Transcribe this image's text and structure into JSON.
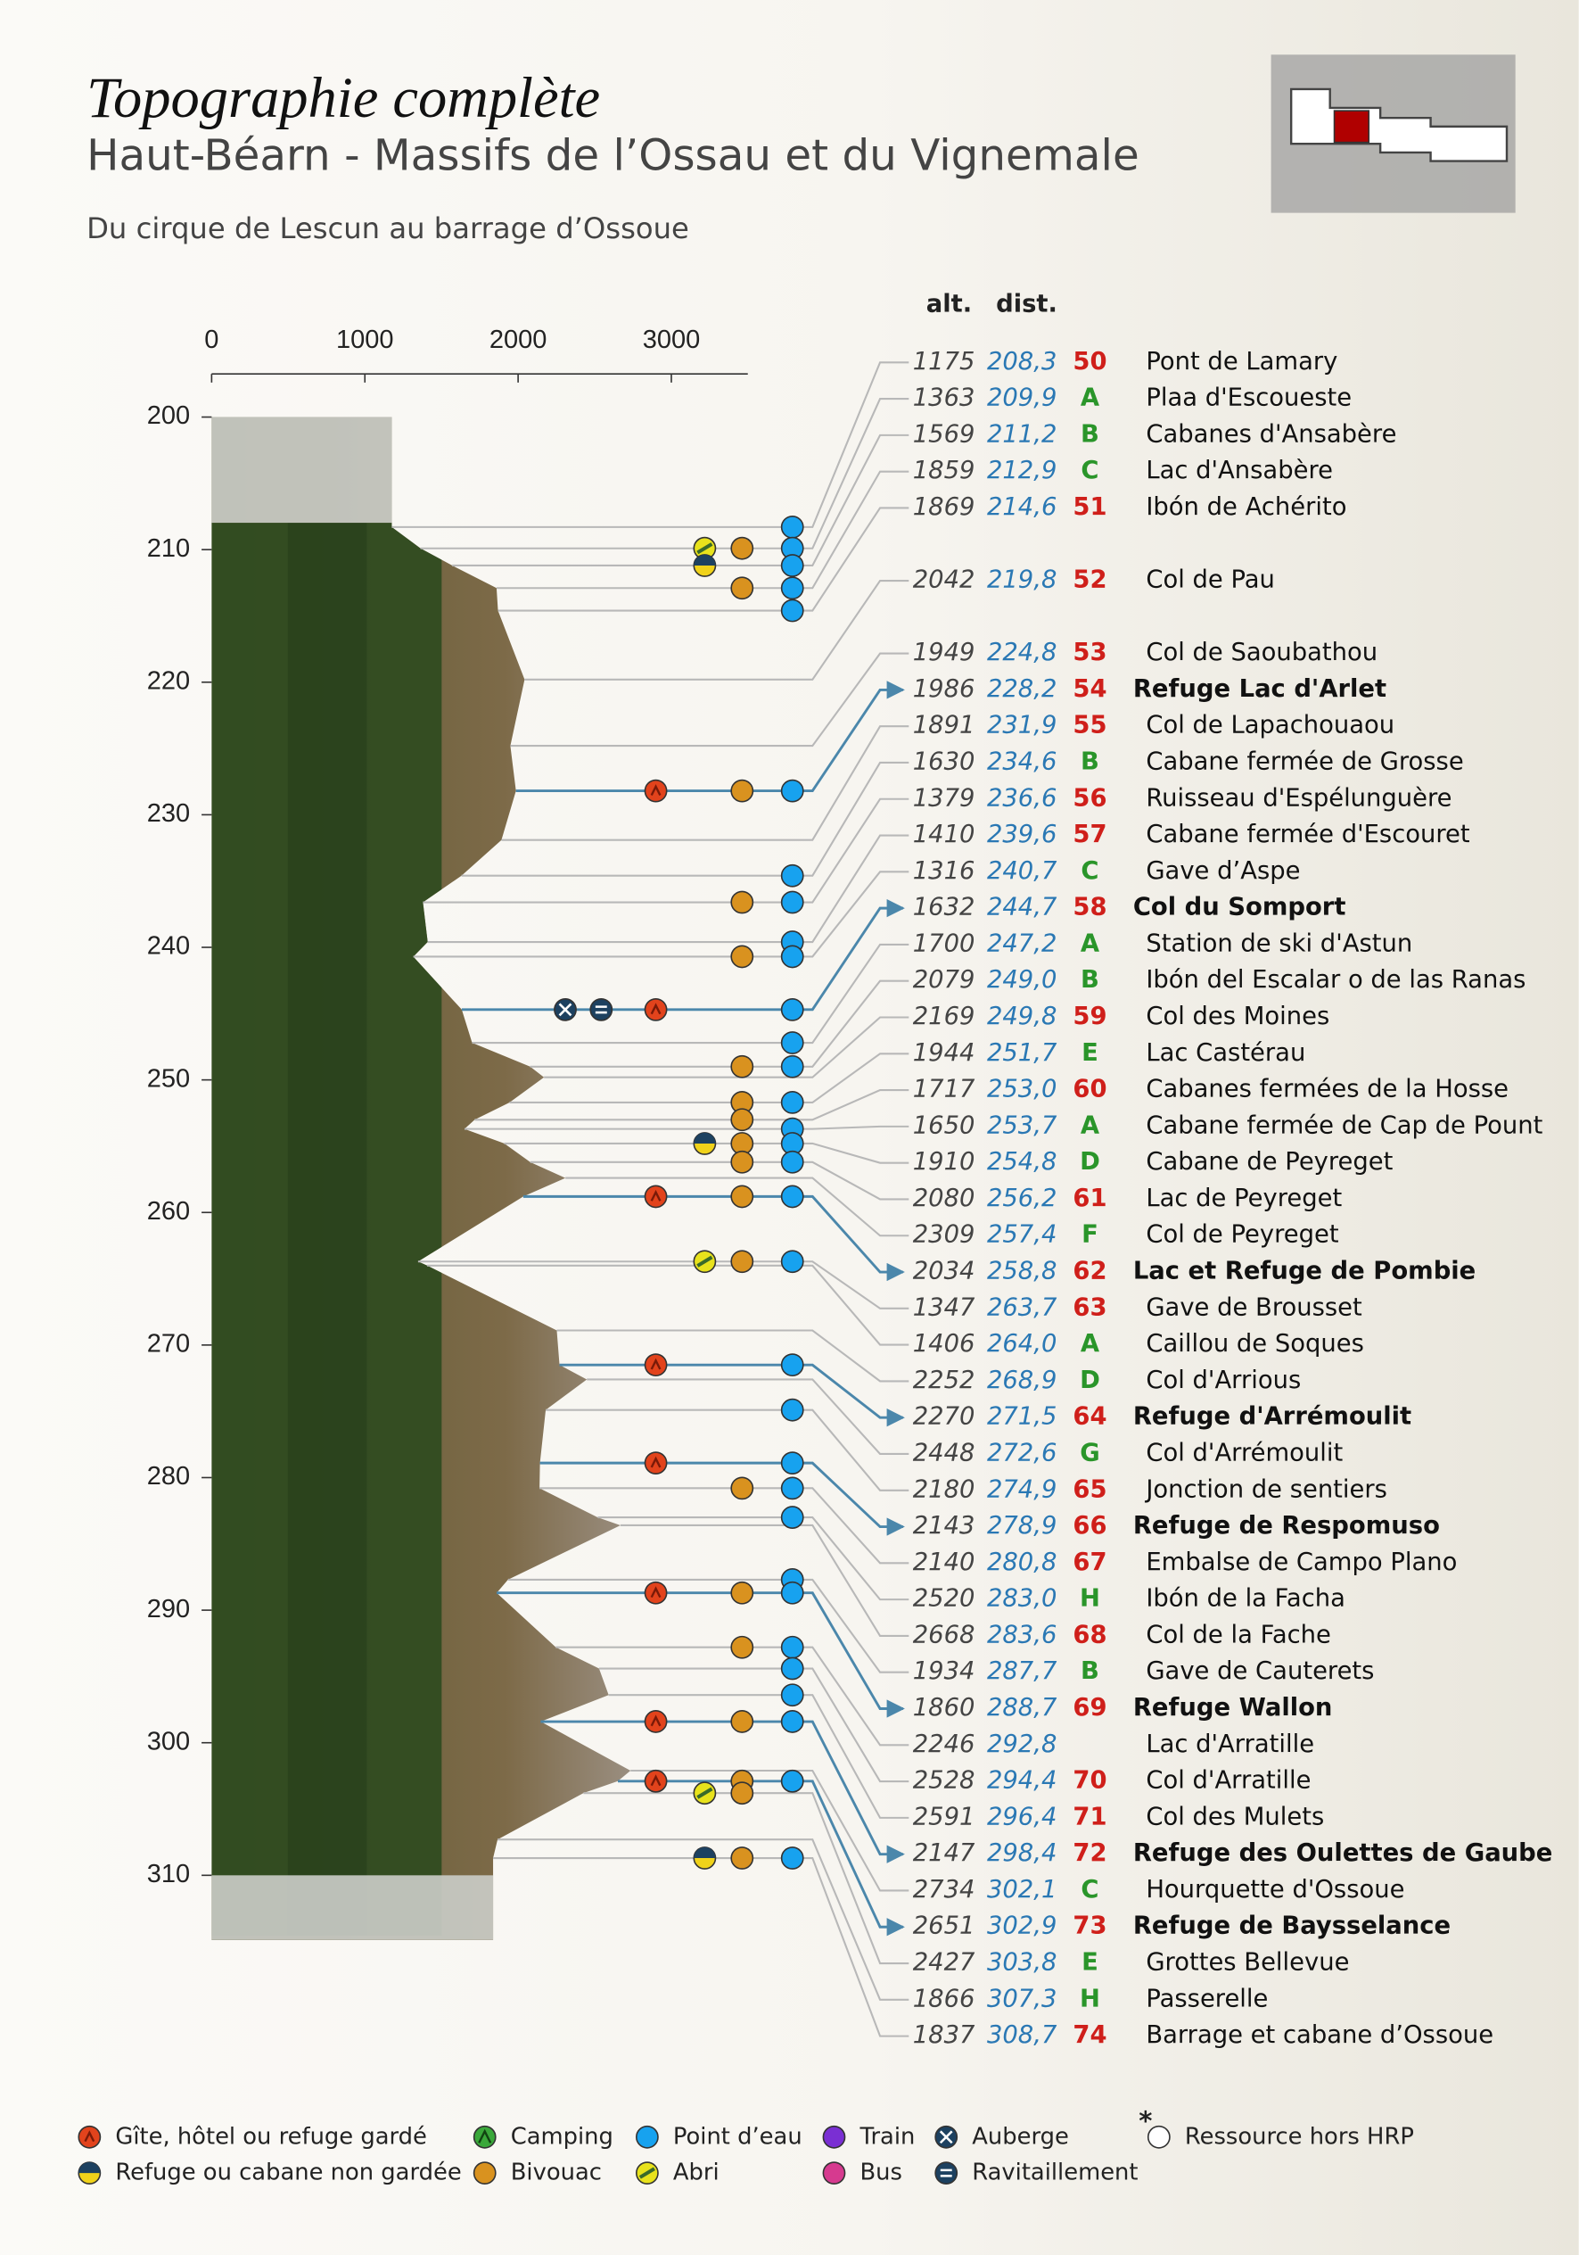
{
  "header": {
    "title": "Topographie complète",
    "subtitle": "Haut-Béarn - Massifs de l’Ossau et du Vignemale",
    "route": "Du cirque de Lescun au barrage d’Ossoue"
  },
  "profile": {
    "elevation_ticks": [
      0,
      1000,
      2000,
      3000
    ],
    "distance_ticks": [
      200,
      210,
      220,
      230,
      240,
      250,
      260,
      270,
      280,
      290,
      300,
      310
    ]
  },
  "table": {
    "headers": {
      "alt": "alt.",
      "dist": "dist."
    },
    "rows": [
      {
        "alt": 1175,
        "dist": {
          "value": 208.3,
          "label": "208,3"
        },
        "ref": "50",
        "name": "Pont de Lamary"
      },
      {
        "alt": 1363,
        "dist": {
          "value": 209.9,
          "label": "209,9"
        },
        "ref": "A",
        "name": "Plaa d'Escoueste"
      },
      {
        "alt": 1569,
        "dist": {
          "value": 211.2,
          "label": "211,2"
        },
        "ref": "B",
        "name": "Cabanes d'Ansabère"
      },
      {
        "alt": 1859,
        "dist": {
          "value": 212.9,
          "label": "212,9"
        },
        "ref": "C",
        "name": "Lac d'Ansabère"
      },
      {
        "alt": 1869,
        "dist": {
          "value": 214.6,
          "label": "214,6"
        },
        "ref": "51",
        "name": "Ibón de Achérito"
      },
      {
        "alt": 2042,
        "dist": {
          "value": 219.8,
          "label": "219,8"
        },
        "ref": "52",
        "name": "Col de Pau"
      },
      {
        "alt": 1949,
        "dist": {
          "value": 224.8,
          "label": "224,8"
        },
        "ref": "53",
        "name": "Col de Saoubathou"
      },
      {
        "alt": 1986,
        "dist": {
          "value": 228.2,
          "label": "228,2"
        },
        "ref": "54",
        "name": "Refuge Lac d'Arlet"
      },
      {
        "alt": 1891,
        "dist": {
          "value": 231.9,
          "label": "231,9"
        },
        "ref": "55",
        "name": "Col de Lapachouaou"
      },
      {
        "alt": 1630,
        "dist": {
          "value": 234.6,
          "label": "234,6"
        },
        "ref": "B",
        "name": "Cabane fermée de Grosse"
      },
      {
        "alt": 1379,
        "dist": {
          "value": 236.6,
          "label": "236,6"
        },
        "ref": "56",
        "name": "Ruisseau d'Espélunguère"
      },
      {
        "alt": 1410,
        "dist": {
          "value": 239.6,
          "label": "239,6"
        },
        "ref": "57",
        "name": "Cabane fermée d'Escouret"
      },
      {
        "alt": 1316,
        "dist": {
          "value": 240.7,
          "label": "240,7"
        },
        "ref": "C",
        "name": "Gave d’Aspe"
      },
      {
        "alt": 1632,
        "dist": {
          "value": 244.7,
          "label": "244,7"
        },
        "ref": "58",
        "name": "Col du Somport"
      },
      {
        "alt": 1700,
        "dist": {
          "value": 247.2,
          "label": "247,2"
        },
        "ref": "A",
        "name": "Station de ski d'Astun"
      },
      {
        "alt": 2079,
        "dist": {
          "value": 249.0,
          "label": "249,0"
        },
        "ref": "B",
        "name": "Ibón del Escalar o de las Ranas"
      },
      {
        "alt": 2169,
        "dist": {
          "value": 249.8,
          "label": "249,8"
        },
        "ref": "59",
        "name": "Col des Moines"
      },
      {
        "alt": 1944,
        "dist": {
          "value": 251.7,
          "label": "251,7"
        },
        "ref": "E",
        "name": "Lac Castérau"
      },
      {
        "alt": 1717,
        "dist": {
          "value": 253.0,
          "label": "253,0"
        },
        "ref": "60",
        "name": "Cabanes fermées de la Hosse"
      },
      {
        "alt": 1650,
        "dist": {
          "value": 253.7,
          "label": "253,7"
        },
        "ref": "A",
        "name": "Cabane fermée de Cap de Pount"
      },
      {
        "alt": 1910,
        "dist": {
          "value": 254.8,
          "label": "254,8"
        },
        "ref": "D",
        "name": "Cabane de Peyreget"
      },
      {
        "alt": 2080,
        "dist": {
          "value": 256.2,
          "label": "256,2"
        },
        "ref": "61",
        "name": "Lac de Peyreget"
      },
      {
        "alt": 2309,
        "dist": {
          "value": 257.4,
          "label": "257,4"
        },
        "ref": "F",
        "name": "Col de Peyreget"
      },
      {
        "alt": 2034,
        "dist": {
          "value": 258.8,
          "label": "258,8"
        },
        "ref": "62",
        "name": "Lac et Refuge de Pombie"
      },
      {
        "alt": 1347,
        "dist": {
          "value": 263.7,
          "label": "263,7"
        },
        "ref": "63",
        "name": "Gave de Brousset"
      },
      {
        "alt": 1406,
        "dist": {
          "value": 264.0,
          "label": "264,0"
        },
        "ref": "A",
        "name": "Caillou de Soques"
      },
      {
        "alt": 2252,
        "dist": {
          "value": 268.9,
          "label": "268,9"
        },
        "ref": "D",
        "name": "Col d'Arrious"
      },
      {
        "alt": 2270,
        "dist": {
          "value": 271.5,
          "label": "271,5"
        },
        "ref": "64",
        "name": "Refuge d'Arrémoulit"
      },
      {
        "alt": 2448,
        "dist": {
          "value": 272.6,
          "label": "272,6"
        },
        "ref": "G",
        "name": "Col d'Arrémoulit"
      },
      {
        "alt": 2180,
        "dist": {
          "value": 274.9,
          "label": "274,9"
        },
        "ref": "65",
        "name": "Jonction de sentiers"
      },
      {
        "alt": 2143,
        "dist": {
          "value": 278.9,
          "label": "278,9"
        },
        "ref": "66",
        "name": "Refuge de Respomuso"
      },
      {
        "alt": 2140,
        "dist": {
          "value": 280.8,
          "label": "280,8"
        },
        "ref": "67",
        "name": "Embalse de Campo Plano"
      },
      {
        "alt": 2520,
        "dist": {
          "value": 283.0,
          "label": "283,0"
        },
        "ref": "H",
        "name": "Ibón de la Facha"
      },
      {
        "alt": 2668,
        "dist": {
          "value": 283.6,
          "label": "283,6"
        },
        "ref": "68",
        "name": "Col de la Fache"
      },
      {
        "alt": 1934,
        "dist": {
          "value": 287.7,
          "label": "287,7"
        },
        "ref": "B",
        "name": "Gave de Cauterets"
      },
      {
        "alt": 1860,
        "dist": {
          "value": 288.7,
          "label": "288,7"
        },
        "ref": "69",
        "name": "Refuge Wallon"
      },
      {
        "alt": 2246,
        "dist": {
          "value": 292.8,
          "label": "292,8"
        },
        "name": "Lac d'Arratille"
      },
      {
        "alt": 2528,
        "dist": {
          "value": 294.4,
          "label": "294,4"
        },
        "ref": "70",
        "name": "Col d'Arratille"
      },
      {
        "alt": 2591,
        "dist": {
          "value": 296.4,
          "label": "296,4"
        },
        "ref": "71",
        "name": "Col des Mulets"
      },
      {
        "alt": 2147,
        "dist": {
          "value": 298.4,
          "label": "298,4"
        },
        "ref": "72",
        "name": "Refuge des Oulettes de Gaube"
      },
      {
        "alt": 2734,
        "dist": {
          "value": 302.1,
          "label": "302,1"
        },
        "ref": "C",
        "name": "Hourquette d'Ossoue"
      },
      {
        "alt": 2651,
        "dist": {
          "value": 302.9,
          "label": "302,9"
        },
        "ref": "73",
        "name": "Refuge de Baysselance"
      },
      {
        "alt": 2427,
        "dist": {
          "value": 303.8,
          "label": "303,8"
        },
        "ref": "E",
        "name": "Grottes Bellevue"
      },
      {
        "alt": 1866,
        "dist": {
          "value": 307.3,
          "label": "307,3"
        },
        "ref": "H",
        "name": "Passerelle"
      },
      {
        "alt": 1837,
        "dist": {
          "value": 308.7,
          "label": "308,7"
        },
        "ref": "74",
        "name": "Barrage et cabane d’Ossoue"
      }
    ]
  },
  "legend": {
    "items": [
      "Gîte, hôtel ou refuge gardé",
      "Refuge ou cabane non gardée",
      "Camping",
      "Bivouac",
      "Point d’eau",
      "Abri",
      "Train",
      "Bus",
      "Auberge",
      "Ravitaillement",
      "Ressource hors HRP"
    ],
    "asterisk": "*"
  }
}
